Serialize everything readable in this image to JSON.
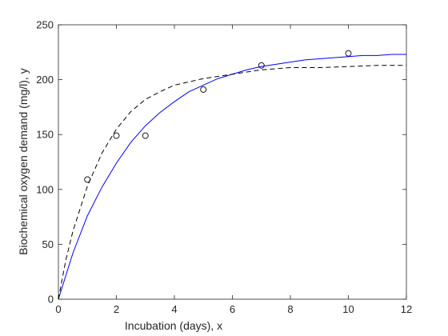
{
  "chart_data": {
    "type": "scatter",
    "xlabel": "Incubation (days), x",
    "ylabel": "Biochemical oxygen demand (mg/l), y",
    "xlim": [
      0,
      12
    ],
    "ylim": [
      0,
      250
    ],
    "x_ticks": [
      "0",
      "2",
      "4",
      "6",
      "8",
      "10",
      "12"
    ],
    "y_ticks": [
      "0",
      "50",
      "100",
      "150",
      "200",
      "250"
    ],
    "grid": false,
    "legend": "none",
    "series": [
      {
        "kind": "points",
        "marker": "circle",
        "color": "#000000",
        "x": [
          1,
          2,
          3,
          5,
          7,
          10
        ],
        "y": [
          109,
          149,
          149,
          191,
          213,
          224
        ]
      },
      {
        "kind": "line",
        "style": "solid",
        "color": "#0000ff",
        "x": [
          0,
          0.5,
          1,
          1.5,
          2,
          2.5,
          3,
          3.5,
          4,
          4.5,
          5,
          5.5,
          6,
          6.5,
          7,
          7.5,
          8,
          8.5,
          9,
          9.5,
          10,
          10.5,
          11,
          11.5,
          12
        ],
        "y": [
          0,
          42,
          76,
          102,
          124,
          143,
          158,
          170,
          180,
          189,
          195,
          201,
          205,
          209,
          212,
          214,
          216,
          218,
          219,
          220,
          221,
          222,
          222,
          223,
          223
        ]
      },
      {
        "kind": "line",
        "style": "dashed",
        "color": "#000000",
        "x": [
          0,
          0.25,
          0.5,
          1,
          1.5,
          2,
          2.5,
          3,
          3.5,
          4,
          4.5,
          5,
          5.5,
          6,
          6.5,
          7,
          8,
          9,
          10,
          11,
          12
        ],
        "y": [
          0,
          35,
          62,
          103,
          133,
          155,
          171,
          182,
          189,
          195,
          198,
          201,
          203,
          205,
          207,
          209,
          211,
          211,
          212,
          213,
          213
        ]
      }
    ]
  }
}
